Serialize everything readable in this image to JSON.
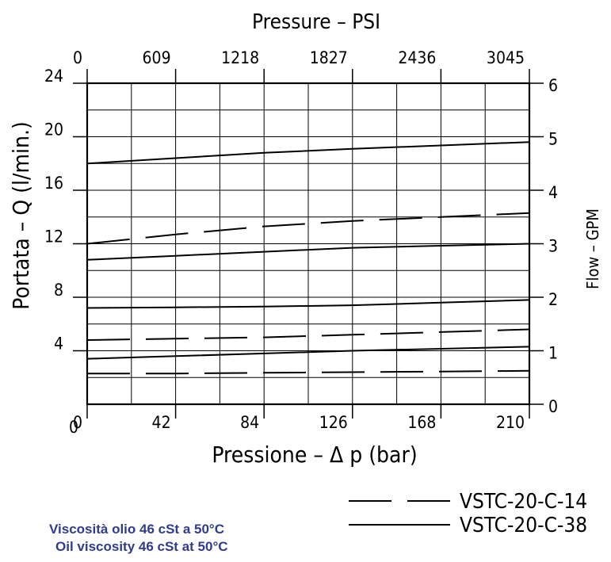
{
  "chart_data": {
    "type": "line",
    "top_axis": {
      "label": "Pressure – PSI",
      "ticks": [
        "0",
        "609",
        "1218",
        "1827",
        "2436",
        "3045"
      ]
    },
    "x": {
      "label": "Pressione – Δ p (bar)",
      "range": [
        0,
        210
      ],
      "ticks": [
        0,
        42,
        84,
        126,
        168,
        210
      ],
      "tick_labels": [
        "0",
        "42",
        "84",
        "126",
        "168",
        "210"
      ]
    },
    "y_left": {
      "label": "Portata – Q (l/min.)",
      "range": [
        0,
        24
      ],
      "ticks": [
        4,
        8,
        12,
        16,
        20,
        24
      ],
      "tick_labels": [
        "4",
        "8",
        "12",
        "16",
        "20",
        "24"
      ]
    },
    "y_right": {
      "label": "Flow – GPM",
      "range": [
        0,
        6
      ],
      "ticks": [
        0,
        1,
        2,
        3,
        4,
        5,
        6
      ],
      "tick_labels": [
        "0",
        "1",
        "2",
        "3",
        "4",
        "5",
        "6"
      ]
    },
    "grid": true,
    "series": [
      {
        "name": "VSTC-20-C-38",
        "style": "solid",
        "x": [
          0,
          42,
          84,
          126,
          168,
          210
        ],
        "y": [
          18.0,
          18.4,
          18.8,
          19.1,
          19.35,
          19.6
        ]
      },
      {
        "name": "VSTC-20-C-14",
        "style": "dashed",
        "x": [
          0,
          42,
          84,
          126,
          168,
          210
        ],
        "y": [
          12.0,
          12.7,
          13.3,
          13.7,
          14.0,
          14.3
        ]
      },
      {
        "name": "VSTC-20-C-38",
        "style": "solid",
        "x": [
          0,
          42,
          84,
          126,
          168,
          210
        ],
        "y": [
          10.8,
          11.1,
          11.4,
          11.7,
          11.85,
          12.0
        ]
      },
      {
        "name": "VSTC-20-C-38",
        "style": "solid",
        "x": [
          0,
          42,
          84,
          126,
          168,
          210
        ],
        "y": [
          7.2,
          7.25,
          7.3,
          7.4,
          7.6,
          7.8
        ]
      },
      {
        "name": "VSTC-20-C-14",
        "style": "dashed",
        "x": [
          0,
          42,
          84,
          126,
          168,
          210
        ],
        "y": [
          4.8,
          4.9,
          5.0,
          5.2,
          5.4,
          5.6
        ]
      },
      {
        "name": "VSTC-20-C-38",
        "style": "solid",
        "x": [
          0,
          42,
          84,
          126,
          168,
          210
        ],
        "y": [
          3.4,
          3.6,
          3.8,
          4.0,
          4.15,
          4.3
        ]
      },
      {
        "name": "VSTC-20-C-14",
        "style": "dashed",
        "x": [
          0,
          42,
          84,
          126,
          168,
          210
        ],
        "y": [
          2.3,
          2.3,
          2.35,
          2.4,
          2.45,
          2.5
        ]
      }
    ],
    "legend": {
      "position": "bottom-right",
      "entries": [
        {
          "label": "VSTC-20-C-14",
          "style": "dashed"
        },
        {
          "label": "VSTC-20-C-38",
          "style": "solid"
        }
      ]
    }
  },
  "notes": {
    "line1": "Viscosità olio 46 cSt a 50°C",
    "line2": "Oil viscosity 46 cSt at 50°C"
  },
  "colors": {
    "ink": "#000000",
    "note": "#2f3c8c"
  }
}
